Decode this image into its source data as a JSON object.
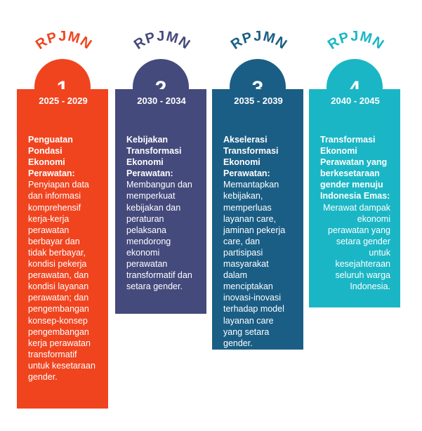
{
  "phases": [
    {
      "acronym": "RPJMN",
      "number": "1",
      "period": "2025 - 2029",
      "heading": "Penguatan Pondasi Ekonomi Perawatan:",
      "description": "Penyiapan data dan informasi komprehensif kerja-kerja perawatan berbayar dan tidak berbayar, kondisi pekerja perawatan, dan kondisi layanan perawatan; dan pengembangan konsep-konsep pengembangan kerja perawatan transformatif untuk kesetaraan gender.",
      "color": "#f0441f"
    },
    {
      "acronym": "RPJMN",
      "number": "2",
      "period": "2030 - 2034",
      "heading": "Kebijakan Transformasi Ekonomi Perawatan:",
      "description": "Membangun dan memperkuat kebijakan dan peraturan pelaksana mendorong ekonomi perawatan transformatif dan setara gender.",
      "color": "#454a7c"
    },
    {
      "acronym": "RPJMN",
      "number": "3",
      "period": "2035 - 2039",
      "heading": "Akselerasi Transformasi Ekonomi Perawatan:",
      "description": "Memantapkan kebijakan, memperluas layanan care, jaminan pekerja care, dan partisipasi masyarakat dalam menciptakan inovasi-inovasi terhadap model layanan care yang setara gender.",
      "color": "#1b5e85"
    },
    {
      "acronym": "RPJMN",
      "number": "4",
      "period": "2040 - 2045",
      "heading": "Transformasi Ekonomi Perawatan yang berkesetaraan gender menuju Indonesia Emas:",
      "description": "Merawat dampak ekonomi perawatan yang setara gender untuk kesejahteraan seluruh warga Indonesia.",
      "color": "#1bb6c5"
    }
  ]
}
